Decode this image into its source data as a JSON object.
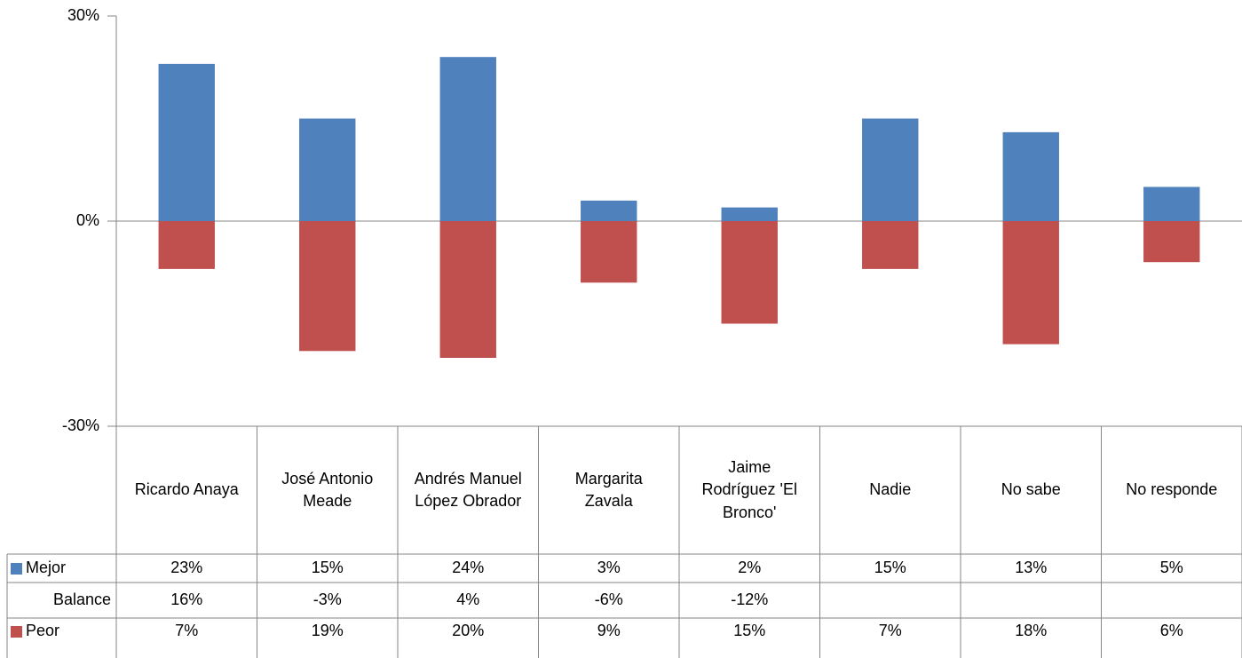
{
  "chart_data": {
    "type": "bar",
    "categories": [
      "Ricardo Anaya",
      "José Antonio Meade",
      "Andrés Manuel López Obrador",
      "Margarita Zavala",
      "Jaime Rodríguez 'El Bronco'",
      "Nadie",
      "No sabe",
      "No responde"
    ],
    "series": [
      {
        "name": "Mejor",
        "color": "#4f81bd",
        "values": [
          23,
          15,
          24,
          3,
          2,
          15,
          13,
          5
        ],
        "value_labels": [
          "23%",
          "15%",
          "24%",
          "3%",
          "2%",
          "15%",
          "13%",
          "5%"
        ]
      },
      {
        "name": "Balance",
        "values": [
          16,
          -3,
          4,
          -6,
          -12,
          null,
          null,
          null
        ],
        "value_labels": [
          "16%",
          "-3%",
          "4%",
          "-6%",
          "-12%",
          null,
          null,
          null
        ]
      },
      {
        "name": "Peor",
        "color": "#c0504d",
        "values": [
          -7,
          -19,
          -20,
          -9,
          -15,
          -7,
          -18,
          -6
        ],
        "value_labels": [
          "7%",
          "19%",
          "20%",
          "9%",
          "15%",
          "7%",
          "18%",
          "6%"
        ]
      }
    ],
    "ylim": [
      -30,
      30
    ],
    "yticks": [
      {
        "value": -30,
        "label": "-30%"
      },
      {
        "value": 0,
        "label": "0%"
      },
      {
        "value": 30,
        "label": "30%"
      }
    ]
  }
}
